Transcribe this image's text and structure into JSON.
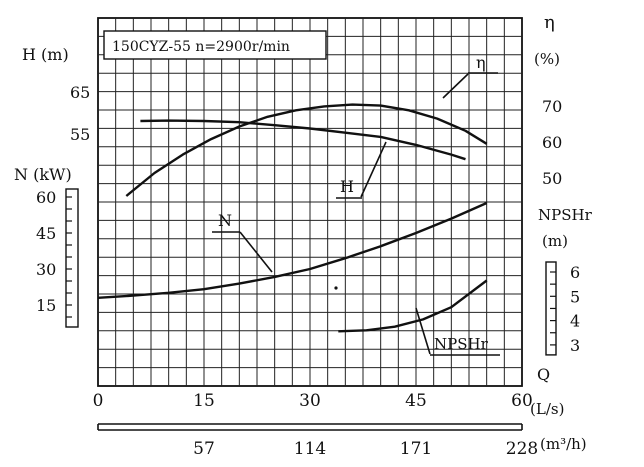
{
  "chart_data": {
    "type": "line",
    "title": "150CYZ-55 n=2900r/min",
    "axes": {
      "q_ls": {
        "unit": "(L/s)",
        "ticks": [
          0,
          15,
          30,
          45,
          60
        ]
      },
      "q_m3h": {
        "unit": "(m³/h)",
        "ticks": [
          "57",
          "114",
          "171",
          "228"
        ],
        "tick_q_ls": [
          15,
          30,
          45,
          60
        ]
      },
      "head": {
        "label": "H (m)",
        "ticks": [
          55,
          65
        ]
      },
      "power": {
        "label": "N (kW)",
        "ticks": [
          15,
          30,
          45,
          60
        ]
      },
      "efficiency": {
        "label": "η",
        "unit": "(%)",
        "ticks": [
          50,
          60,
          70
        ]
      },
      "npshr": {
        "label": "NPSHr",
        "unit": "(m)",
        "ticks": [
          3,
          4,
          5,
          6
        ]
      },
      "flow_label": "Q"
    },
    "series": [
      {
        "name": "η",
        "axis": "efficiency",
        "q": [
          4,
          8,
          12,
          16,
          20,
          24,
          28,
          32,
          36,
          40,
          44,
          48,
          52,
          55
        ],
        "values": [
          45,
          51.4,
          56.5,
          60.8,
          64.3,
          67,
          68.8,
          69.9,
          70.4,
          70.1,
          68.8,
          66.5,
          63.1,
          59.5
        ]
      },
      {
        "name": "H",
        "axis": "head",
        "q": [
          6,
          10,
          15,
          20,
          25,
          30,
          35,
          40,
          45,
          50,
          52
        ],
        "values": [
          58.1,
          58.2,
          58.1,
          57.8,
          57.1,
          56.3,
          55.3,
          54.3,
          52.4,
          50.1,
          49
        ]
      },
      {
        "name": "N",
        "axis": "power",
        "q": [
          0,
          5,
          10,
          15,
          20,
          25,
          30,
          35,
          40,
          45,
          50,
          55
        ],
        "values": [
          18,
          18.9,
          20.1,
          21.6,
          23.9,
          26.7,
          30,
          34.5,
          39.5,
          45,
          51,
          57.5
        ]
      },
      {
        "name": "NPSHr",
        "axis": "npshr",
        "q": [
          34,
          38,
          42,
          46,
          50,
          55
        ],
        "values": [
          3.56,
          3.6,
          3.75,
          4.05,
          4.55,
          5.65
        ]
      }
    ],
    "callouts": {
      "eta": "η",
      "head": "H",
      "power": "N",
      "npshr": "NPSHr"
    },
    "grid": true
  }
}
